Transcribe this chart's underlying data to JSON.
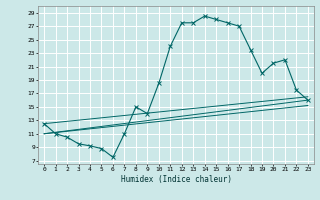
{
  "title": "",
  "xlabel": "Humidex (Indice chaleur)",
  "ylabel": "",
  "bg_color": "#cce8e8",
  "grid_color": "#ffffff",
  "line_color": "#006666",
  "xlim": [
    -0.5,
    23.5
  ],
  "ylim": [
    6.5,
    30.0
  ],
  "xticks": [
    0,
    1,
    2,
    3,
    4,
    5,
    6,
    7,
    8,
    9,
    10,
    11,
    12,
    13,
    14,
    15,
    16,
    17,
    18,
    19,
    20,
    21,
    22,
    23
  ],
  "yticks": [
    7,
    9,
    11,
    13,
    15,
    17,
    19,
    21,
    23,
    25,
    27,
    29
  ],
  "main_x": [
    0,
    1,
    2,
    3,
    4,
    5,
    6,
    7,
    8,
    9,
    10,
    11,
    12,
    13,
    14,
    15,
    16,
    17,
    18,
    19,
    20,
    21,
    22,
    23
  ],
  "main_y": [
    12.5,
    11.0,
    10.5,
    9.5,
    9.2,
    8.8,
    7.5,
    11.0,
    15.0,
    14.0,
    18.5,
    24.0,
    27.5,
    27.5,
    28.5,
    28.0,
    27.5,
    27.0,
    23.5,
    20.0,
    21.5,
    22.0,
    17.5,
    16.0
  ],
  "line1_x": [
    0,
    23
  ],
  "line1_y": [
    12.5,
    16.5
  ],
  "line2_x": [
    0,
    23
  ],
  "line2_y": [
    11.0,
    16.0
  ],
  "line3_x": [
    0,
    23
  ],
  "line3_y": [
    11.0,
    15.2
  ],
  "figsize": [
    3.2,
    2.0
  ],
  "dpi": 100
}
